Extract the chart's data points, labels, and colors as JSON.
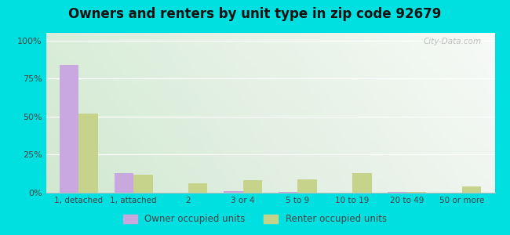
{
  "title": "Owners and renters by unit type in zip code 92679",
  "categories": [
    "1, detached",
    "1, attached",
    "2",
    "3 or 4",
    "5 to 9",
    "10 to 19",
    "20 to 49",
    "50 or more"
  ],
  "owner_values": [
    84,
    13,
    0,
    1,
    0.5,
    0,
    0.5,
    0
  ],
  "renter_values": [
    52,
    12,
    6,
    8,
    9,
    13,
    0.5,
    4
  ],
  "owner_color": "#c9a8e0",
  "renter_color": "#c5d48a",
  "background_outer": "#00e0e0",
  "title_fontsize": 12,
  "yticks": [
    0,
    25,
    50,
    75,
    100
  ],
  "ytick_labels": [
    "0%",
    "25%",
    "50%",
    "75%",
    "100%"
  ],
  "ylim": [
    0,
    105
  ],
  "bar_width": 0.35,
  "legend_labels": [
    "Owner occupied units",
    "Renter occupied units"
  ]
}
